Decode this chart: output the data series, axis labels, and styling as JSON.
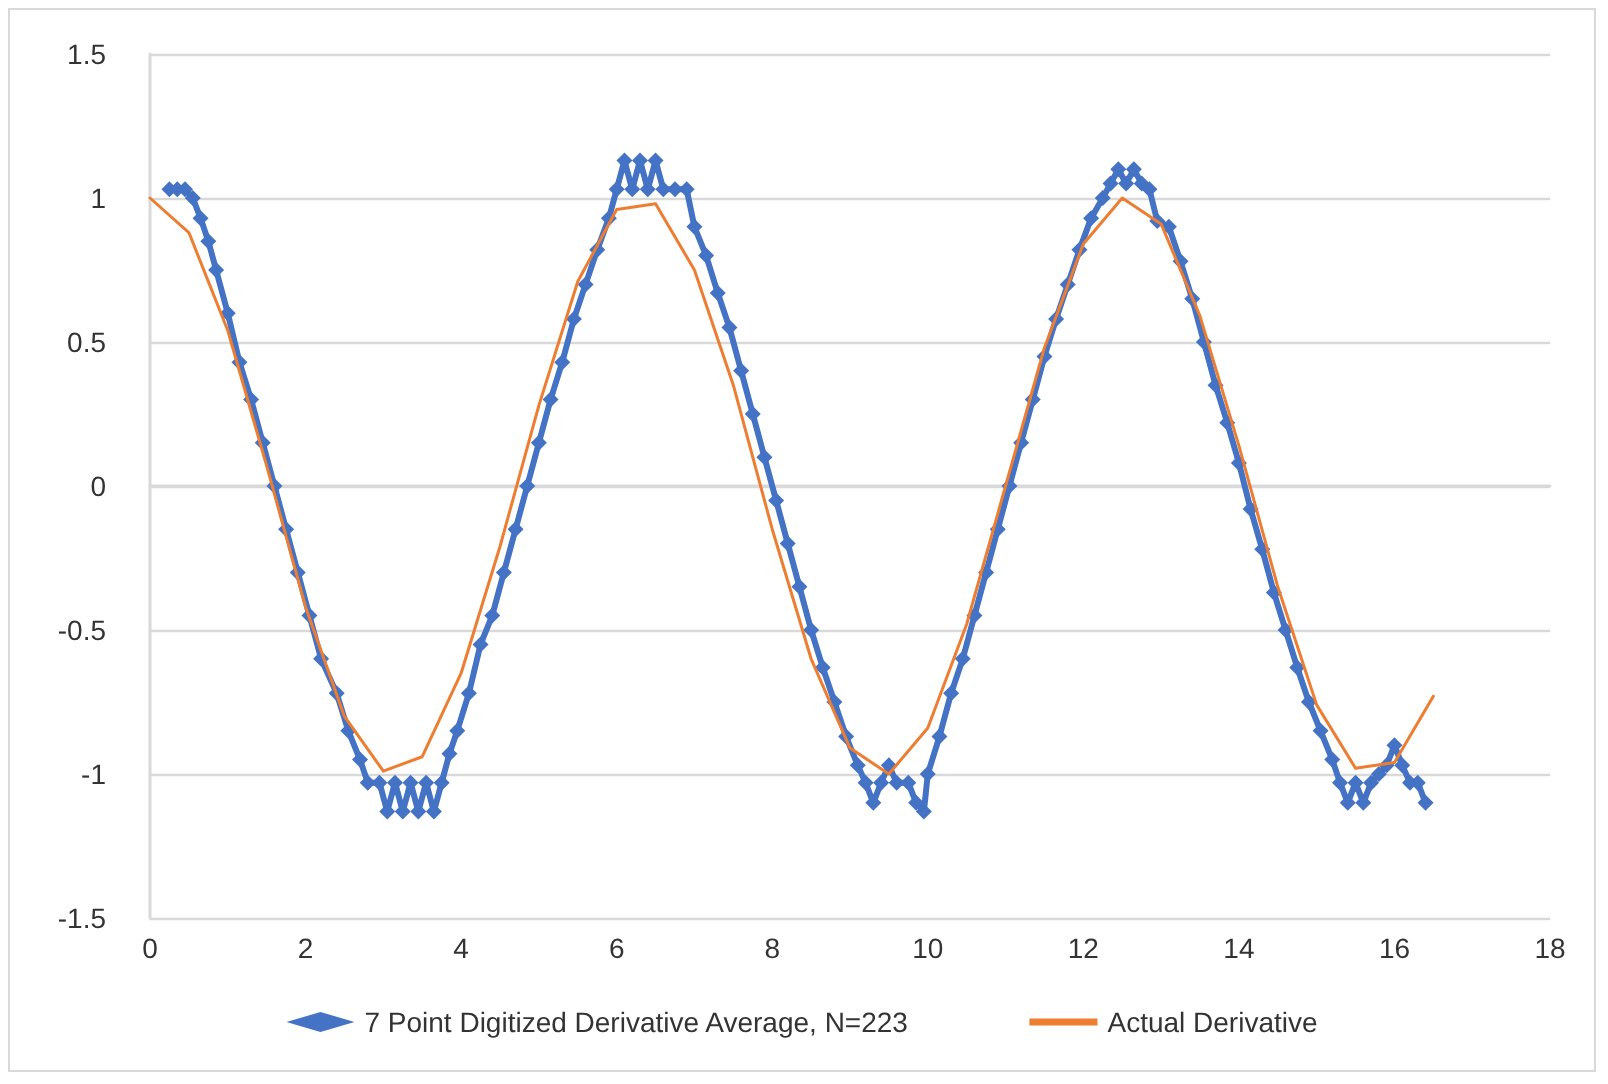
{
  "chart_data": {
    "type": "line",
    "xlim": [
      0,
      18
    ],
    "xticks": [
      0,
      2,
      4,
      6,
      8,
      10,
      12,
      14,
      16,
      18
    ],
    "ylim": [
      -1.5,
      1.5
    ],
    "yticks": [
      -1.5,
      -1,
      -0.5,
      0,
      0.5,
      1,
      1.5
    ],
    "grid": "y",
    "legend": "bottom",
    "series": [
      {
        "name": "7 Point Digitized Derivative Average, N=223",
        "color": "#4472c4",
        "marker": "diamond",
        "x": [
          0.25,
          0.35,
          0.45,
          0.55,
          0.65,
          0.75,
          0.85,
          1.0,
          1.15,
          1.3,
          1.45,
          1.6,
          1.75,
          1.9,
          2.05,
          2.2,
          2.4,
          2.55,
          2.7,
          2.8,
          2.95,
          3.05,
          3.15,
          3.25,
          3.35,
          3.45,
          3.55,
          3.65,
          3.75,
          3.85,
          3.95,
          4.1,
          4.25,
          4.4,
          4.55,
          4.7,
          4.85,
          5.0,
          5.15,
          5.3,
          5.45,
          5.6,
          5.75,
          5.9,
          6.0,
          6.1,
          6.2,
          6.3,
          6.4,
          6.5,
          6.6,
          6.75,
          6.9,
          7.0,
          7.15,
          7.3,
          7.45,
          7.6,
          7.75,
          7.9,
          8.05,
          8.2,
          8.35,
          8.5,
          8.65,
          8.8,
          8.95,
          9.1,
          9.2,
          9.3,
          9.4,
          9.5,
          9.6,
          9.75,
          9.85,
          9.95,
          10.0,
          10.15,
          10.3,
          10.45,
          10.6,
          10.75,
          10.9,
          11.05,
          11.2,
          11.35,
          11.5,
          11.65,
          11.8,
          11.95,
          12.1,
          12.25,
          12.35,
          12.45,
          12.55,
          12.65,
          12.75,
          12.85,
          12.95,
          13.1,
          13.25,
          13.4,
          13.55,
          13.7,
          13.85,
          14.0,
          14.15,
          14.3,
          14.45,
          14.6,
          14.75,
          14.9,
          15.05,
          15.2,
          15.3,
          15.4,
          15.5,
          15.6,
          15.7,
          15.8,
          15.9,
          16.0,
          16.1,
          16.2,
          16.3,
          16.4
        ],
        "values": [
          1.03,
          1.03,
          1.03,
          1.0,
          0.93,
          0.85,
          0.75,
          0.6,
          0.43,
          0.3,
          0.15,
          0.0,
          -0.15,
          -0.3,
          -0.45,
          -0.6,
          -0.72,
          -0.85,
          -0.95,
          -1.03,
          -1.03,
          -1.13,
          -1.03,
          -1.13,
          -1.03,
          -1.13,
          -1.03,
          -1.13,
          -1.03,
          -0.93,
          -0.85,
          -0.72,
          -0.55,
          -0.45,
          -0.3,
          -0.15,
          0.0,
          0.15,
          0.3,
          0.43,
          0.58,
          0.7,
          0.82,
          0.93,
          1.03,
          1.13,
          1.03,
          1.13,
          1.03,
          1.13,
          1.03,
          1.03,
          1.03,
          0.9,
          0.8,
          0.67,
          0.55,
          0.4,
          0.25,
          0.1,
          -0.05,
          -0.2,
          -0.35,
          -0.5,
          -0.63,
          -0.75,
          -0.87,
          -0.97,
          -1.03,
          -1.1,
          -1.03,
          -0.97,
          -1.03,
          -1.03,
          -1.1,
          -1.13,
          -1.0,
          -0.87,
          -0.72,
          -0.6,
          -0.45,
          -0.3,
          -0.15,
          0.0,
          0.15,
          0.3,
          0.45,
          0.58,
          0.7,
          0.82,
          0.93,
          1.0,
          1.05,
          1.1,
          1.05,
          1.1,
          1.05,
          1.03,
          0.92,
          0.9,
          0.78,
          0.65,
          0.5,
          0.35,
          0.22,
          0.08,
          -0.08,
          -0.22,
          -0.37,
          -0.5,
          -0.63,
          -0.75,
          -0.85,
          -0.95,
          -1.03,
          -1.1,
          -1.03,
          -1.1,
          -1.03,
          -1.0,
          -0.97,
          -0.9,
          -0.97,
          -1.03,
          -1.03,
          -1.1
        ]
      },
      {
        "name": "Actual Derivative",
        "color": "#ed7d31",
        "marker": "none",
        "x": [
          0,
          0.5,
          1,
          1.5,
          2,
          2.5,
          3,
          3.5,
          4,
          4.5,
          5,
          5.5,
          6,
          6.5,
          7,
          7.5,
          8,
          8.5,
          9,
          9.5,
          10,
          10.5,
          11,
          11.5,
          12,
          12.5,
          13,
          13.5,
          14,
          14.5,
          15,
          15.5,
          16,
          16.5
        ],
        "values": [
          1,
          0.88,
          0.54,
          0.07,
          -0.42,
          -0.8,
          -0.99,
          -0.94,
          -0.65,
          -0.21,
          0.28,
          0.71,
          0.96,
          0.98,
          0.75,
          0.35,
          -0.15,
          -0.6,
          -0.91,
          -1.0,
          -0.84,
          -0.48,
          0.0,
          0.48,
          0.84,
          1.0,
          0.91,
          0.59,
          0.14,
          -0.35,
          -0.76,
          -0.98,
          -0.96,
          -0.73
        ]
      }
    ]
  }
}
